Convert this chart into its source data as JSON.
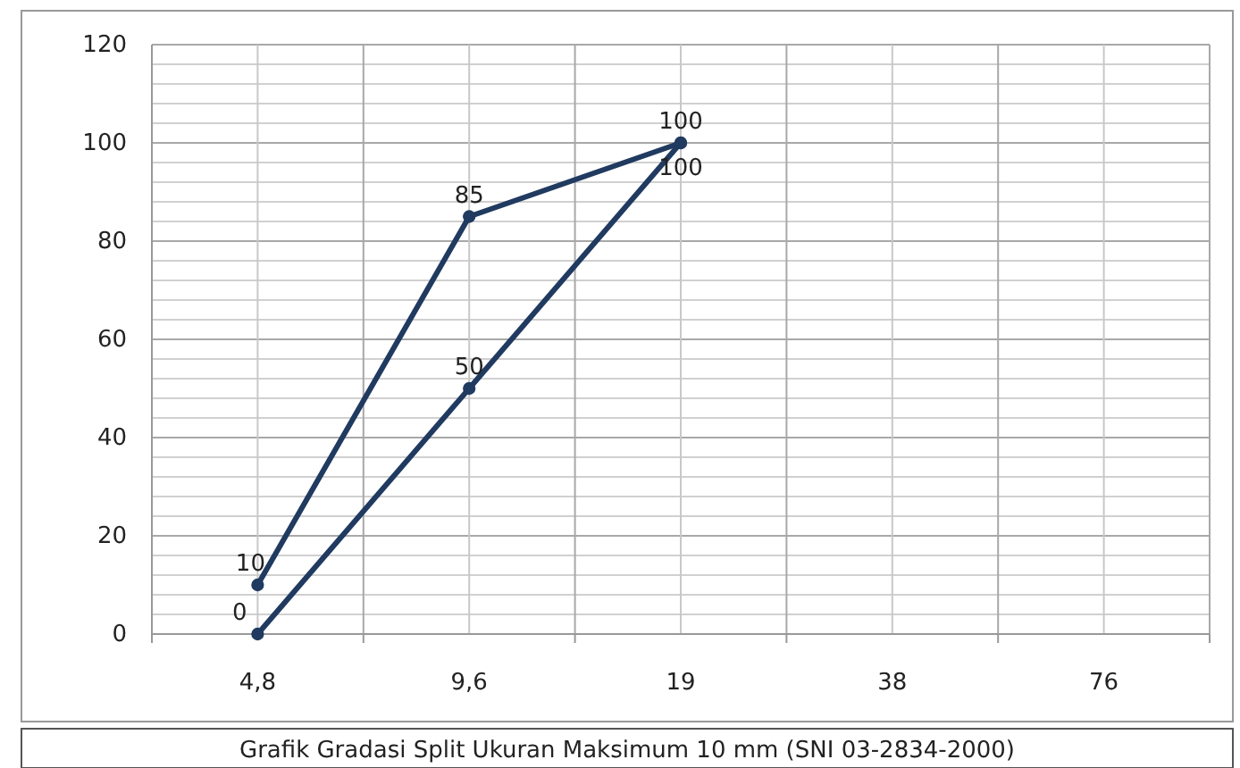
{
  "chart_data": {
    "type": "line",
    "title": "Grafik Gradasi Split Ukuran Maksimum 10 mm (SNI 03-2834-2000)",
    "categories": [
      "4,8",
      "9,6",
      "19",
      "38",
      "76"
    ],
    "series": [
      {
        "color": "#203a60",
        "values": [
          10,
          85,
          100,
          null,
          null
        ]
      },
      {
        "color": "#203a60",
        "values": [
          0,
          50,
          100,
          null,
          null
        ]
      }
    ],
    "ylim": [
      0,
      120
    ],
    "yticks": [
      0,
      {
        "value": 4,
        "label": null
      },
      {
        "value": 8,
        "label": null
      },
      {
        "value": 12,
        "label": null
      },
      {
        "value": 16,
        "label": null
      },
      20,
      {
        "value": 24,
        "label": null
      },
      {
        "value": 28,
        "label": null
      },
      {
        "value": 32,
        "label": null
      },
      {
        "value": 36,
        "label": null
      },
      40,
      {
        "value": 44,
        "label": null
      },
      {
        "value": 48,
        "label": null
      },
      {
        "value": 52,
        "label": null
      },
      {
        "value": 56,
        "label": null
      },
      60,
      {
        "value": 64,
        "label": null
      },
      {
        "value": 68,
        "label": null
      },
      {
        "value": 72,
        "label": null
      },
      {
        "value": 76,
        "label": null
      },
      80,
      {
        "value": 84,
        "label": null
      },
      {
        "value": 88,
        "label": null
      },
      {
        "value": 92,
        "label": null
      },
      {
        "value": 96,
        "label": null
      },
      100,
      {
        "value": 104,
        "label": null
      },
      {
        "value": 108,
        "label": null
      },
      {
        "value": 112,
        "label": null
      },
      {
        "value": 116,
        "label": null
      },
      120
    ],
    "grid": true,
    "marker": "circle",
    "line_style": "solid",
    "data_labels": true
  }
}
